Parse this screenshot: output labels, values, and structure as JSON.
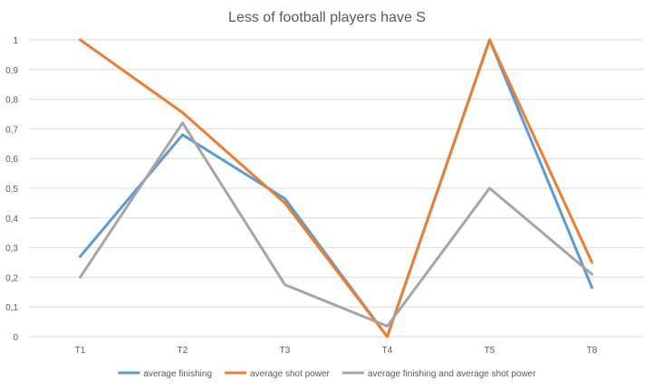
{
  "chart_data": {
    "type": "line",
    "title": "Less of football players have S",
    "categories": [
      "T1",
      "T2",
      "T3",
      "T4",
      "T5",
      "T8"
    ],
    "ylim": [
      0,
      1
    ],
    "yticks": [
      "0",
      "0,1",
      "0,2",
      "0,3",
      "0,4",
      "0,5",
      "0,6",
      "0,7",
      "0,8",
      "0,9",
      "1"
    ],
    "grid": true,
    "legend_position": "bottom",
    "series": [
      {
        "name": "average finishing",
        "color": "#5b9bd5",
        "values": [
          0.27,
          0.68,
          0.465,
          0.0,
          1.0,
          0.165
        ]
      },
      {
        "name": "average shot power",
        "color": "#ed7d31",
        "values": [
          1.0,
          0.755,
          0.45,
          0.0,
          1.0,
          0.25
        ]
      },
      {
        "name": "average finishing and average shot power",
        "color": "#a5a5a5",
        "values": [
          0.2,
          0.72,
          0.175,
          0.035,
          0.5,
          0.21
        ]
      }
    ]
  }
}
